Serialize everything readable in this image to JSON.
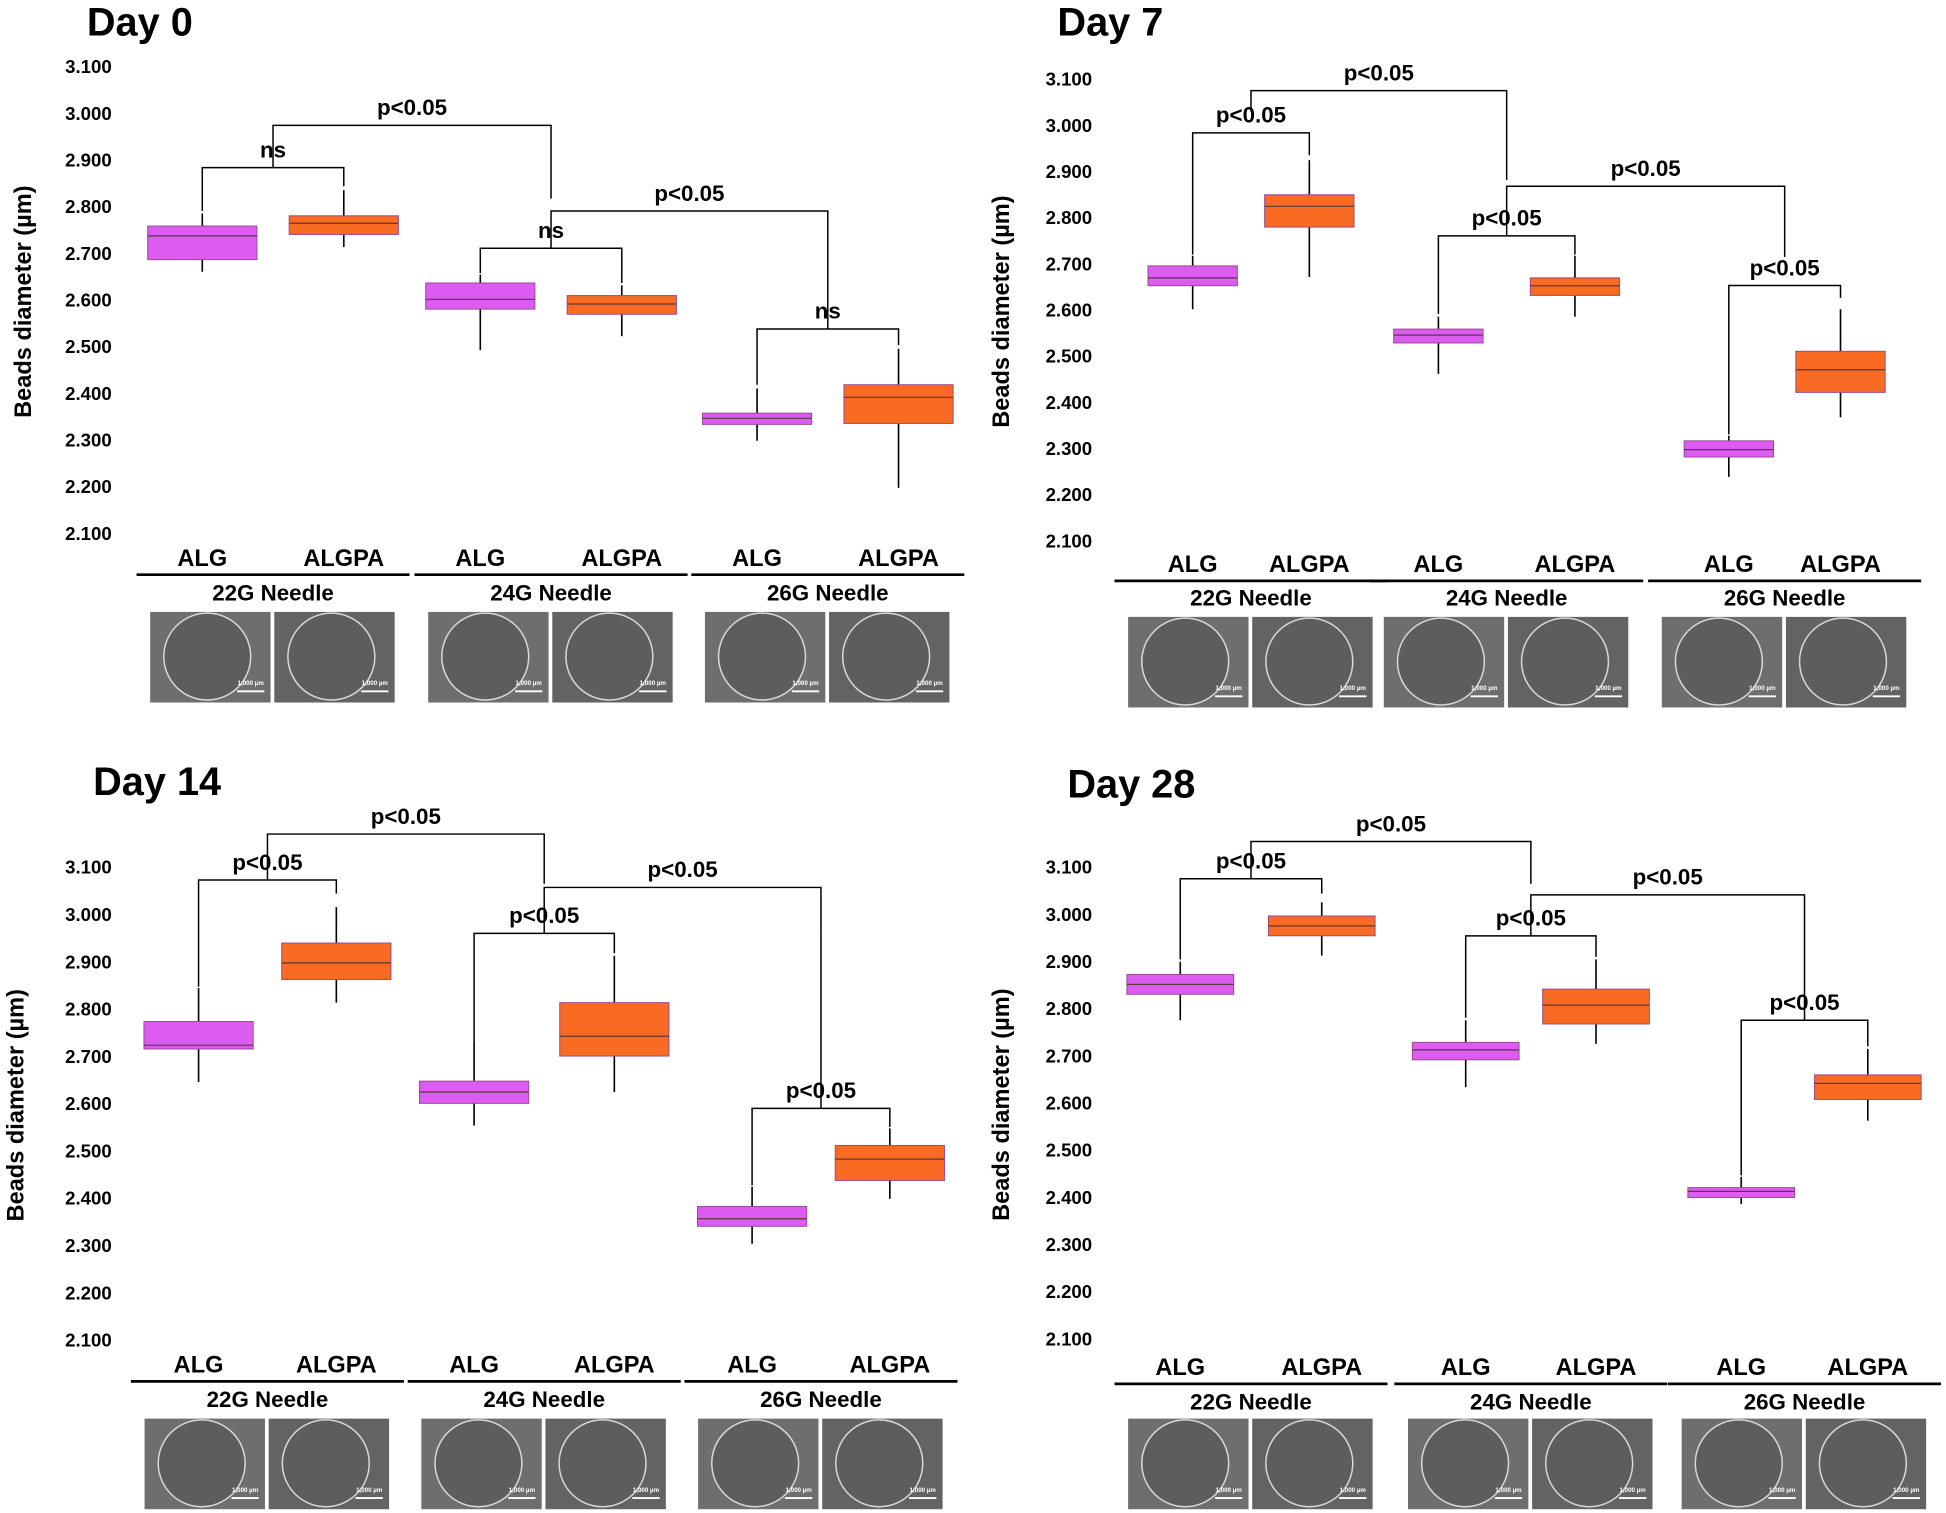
{
  "chart_data": [
    {
      "type": "box",
      "title": "Day 0",
      "ylabel": "Beads diameter (µm)",
      "ylim": [
        2.1,
        3.1
      ],
      "yticks": [
        {
          "value": 2.1,
          "label": "2.100"
        },
        {
          "value": 2.2,
          "label": "2.200"
        },
        {
          "value": 2.3,
          "label": "2.300"
        },
        {
          "value": 2.4,
          "label": "2.400"
        },
        {
          "value": 2.5,
          "label": "2.500"
        },
        {
          "value": 2.6,
          "label": "2.600"
        },
        {
          "value": 2.7,
          "label": "2.700"
        },
        {
          "value": 2.8,
          "label": "2.800"
        },
        {
          "value": 2.9,
          "label": "2.900"
        },
        {
          "value": 3.0,
          "label": "3.000"
        },
        {
          "value": 3.1,
          "label": "3.100"
        }
      ],
      "categories": [
        "ALG",
        "ALGPA",
        "ALG",
        "ALGPA",
        "ALG",
        "ALGPA"
      ],
      "groups": [
        "22G Needle",
        "24G Needle",
        "26G Needle"
      ],
      "boxes": [
        {
          "min": 2.664,
          "q1": 2.69,
          "median": 2.741,
          "q3": 2.762,
          "max": 2.789,
          "color": "#dc5cf2"
        },
        {
          "min": 2.717,
          "q1": 2.744,
          "median": 2.768,
          "q3": 2.784,
          "max": 2.839,
          "color": "#f96a22"
        },
        {
          "min": 2.496,
          "q1": 2.584,
          "median": 2.605,
          "q3": 2.64,
          "max": 2.658,
          "color": "#dc5cf2"
        },
        {
          "min": 2.526,
          "q1": 2.573,
          "median": 2.595,
          "q3": 2.613,
          "max": 2.635,
          "color": "#f96a22"
        },
        {
          "min": 2.302,
          "q1": 2.337,
          "median": 2.35,
          "q3": 2.361,
          "max": 2.414,
          "color": "#dc5cf2"
        },
        {
          "min": 2.201,
          "q1": 2.339,
          "median": 2.395,
          "q3": 2.422,
          "max": 2.499,
          "color": "#f96a22"
        }
      ],
      "annotations": [
        "ns",
        "p<0.05",
        "p<0.05",
        "ns",
        "ns"
      ],
      "scale_label": "1,000 µm"
    },
    {
      "type": "box",
      "title": "Day 7",
      "ylabel": "Beads diameter (µm)",
      "ylim": [
        2.1,
        3.1
      ],
      "yticks": [
        {
          "value": 2.1,
          "label": "2.100"
        },
        {
          "value": 2.2,
          "label": "2.200"
        },
        {
          "value": 2.3,
          "label": "2.300"
        },
        {
          "value": 2.4,
          "label": "2.400"
        },
        {
          "value": 2.5,
          "label": "2.500"
        },
        {
          "value": 2.6,
          "label": "2.600"
        },
        {
          "value": 2.7,
          "label": "2.700"
        },
        {
          "value": 2.8,
          "label": "2.800"
        },
        {
          "value": 2.9,
          "label": "2.900"
        },
        {
          "value": 3.0,
          "label": "3.000"
        },
        {
          "value": 3.1,
          "label": "3.100"
        }
      ],
      "categories": [
        "ALG",
        "ALGPA",
        "ALG",
        "ALGPA",
        "ALG",
        "ALGPA"
      ],
      "groups": [
        "22G Needle",
        "24G Needle",
        "26G Needle"
      ],
      "boxes": [
        {
          "min": 2.605,
          "q1": 2.656,
          "median": 2.673,
          "q3": 2.699,
          "max": 2.721,
          "color": "#dc5cf2"
        },
        {
          "min": 2.675,
          "q1": 2.783,
          "median": 2.828,
          "q3": 2.853,
          "max": 2.928,
          "color": "#f96a22"
        },
        {
          "min": 2.465,
          "q1": 2.532,
          "median": 2.549,
          "q3": 2.562,
          "max": 2.589,
          "color": "#dc5cf2"
        },
        {
          "min": 2.589,
          "q1": 2.635,
          "median": 2.656,
          "q3": 2.673,
          "max": 2.721,
          "color": "#f96a22"
        },
        {
          "min": 2.242,
          "q1": 2.285,
          "median": 2.301,
          "q3": 2.32,
          "max": 2.331,
          "color": "#dc5cf2"
        },
        {
          "min": 2.371,
          "q1": 2.425,
          "median": 2.474,
          "q3": 2.514,
          "max": 2.605,
          "color": "#f96a22"
        }
      ],
      "annotations": [
        "p<0.05",
        "p<0.05",
        "p<0.05",
        "p<0.05",
        "p<0.05"
      ],
      "scale_label": "1,000 µm"
    },
    {
      "type": "box",
      "title": "Day 14",
      "ylabel": "Beads diameter (µm)",
      "ylim": [
        2.1,
        3.1
      ],
      "yticks": [
        {
          "value": 2.1,
          "label": "2.100"
        },
        {
          "value": 2.2,
          "label": "2.200"
        },
        {
          "value": 2.3,
          "label": "2.300"
        },
        {
          "value": 2.4,
          "label": "2.400"
        },
        {
          "value": 2.5,
          "label": "2.500"
        },
        {
          "value": 2.6,
          "label": "2.600"
        },
        {
          "value": 2.7,
          "label": "2.700"
        },
        {
          "value": 2.8,
          "label": "2.800"
        },
        {
          "value": 2.9,
          "label": "2.900"
        },
        {
          "value": 3.0,
          "label": "3.000"
        },
        {
          "value": 3.1,
          "label": "3.100"
        }
      ],
      "categories": [
        "ALG",
        "ALGPA",
        "ALG",
        "ALGPA",
        "ALG",
        "ALGPA"
      ],
      "groups": [
        "22G Needle",
        "24G Needle",
        "26G Needle"
      ],
      "boxes": [
        {
          "min": 2.649,
          "q1": 2.719,
          "median": 2.727,
          "q3": 2.777,
          "max": 2.848,
          "color": "#dc5cf2"
        },
        {
          "min": 2.817,
          "q1": 2.866,
          "median": 2.901,
          "q3": 2.943,
          "max": 3.019,
          "color": "#f96a22"
        },
        {
          "min": 2.557,
          "q1": 2.604,
          "median": 2.628,
          "q3": 2.651,
          "max": 2.733,
          "color": "#dc5cf2"
        },
        {
          "min": 2.628,
          "q1": 2.704,
          "median": 2.746,
          "q3": 2.817,
          "max": 2.916,
          "color": "#f96a22"
        },
        {
          "min": 2.307,
          "q1": 2.344,
          "median": 2.36,
          "q3": 2.386,
          "max": 2.428,
          "color": "#dc5cf2"
        },
        {
          "min": 2.402,
          "q1": 2.441,
          "median": 2.486,
          "q3": 2.515,
          "max": 2.551,
          "color": "#f96a22"
        }
      ],
      "annotations": [
        "p<0.05",
        "p<0.05",
        "p<0.05",
        "p<0.05",
        "p<0.05"
      ],
      "scale_label": "1,000 µm"
    },
    {
      "type": "box",
      "title": "Day 28",
      "ylabel": "Beads diameter (µm)",
      "ylim": [
        2.1,
        3.1
      ],
      "yticks": [
        {
          "value": 2.1,
          "label": "2.100"
        },
        {
          "value": 2.2,
          "label": "2.200"
        },
        {
          "value": 2.3,
          "label": "2.300"
        },
        {
          "value": 2.4,
          "label": "2.400"
        },
        {
          "value": 2.5,
          "label": "2.500"
        },
        {
          "value": 2.6,
          "label": "2.600"
        },
        {
          "value": 2.7,
          "label": "2.700"
        },
        {
          "value": 2.8,
          "label": "2.800"
        },
        {
          "value": 2.9,
          "label": "2.900"
        },
        {
          "value": 3.0,
          "label": "3.000"
        },
        {
          "value": 3.1,
          "label": "3.100"
        }
      ],
      "categories": [
        "ALG",
        "ALGPA",
        "ALG",
        "ALGPA",
        "ALG",
        "ALGPA"
      ],
      "groups": [
        "22G Needle",
        "24G Needle",
        "26G Needle"
      ],
      "boxes": [
        {
          "min": 2.779,
          "q1": 2.834,
          "median": 2.855,
          "q3": 2.876,
          "max": 2.903,
          "color": "#dc5cf2"
        },
        {
          "min": 2.916,
          "q1": 2.958,
          "median": 2.979,
          "q3": 3.0,
          "max": 3.029,
          "color": "#f96a22"
        },
        {
          "min": 2.637,
          "q1": 2.695,
          "median": 2.716,
          "q3": 2.732,
          "max": 2.779,
          "color": "#dc5cf2"
        },
        {
          "min": 2.729,
          "q1": 2.771,
          "median": 2.811,
          "q3": 2.845,
          "max": 2.908,
          "color": "#f96a22"
        },
        {
          "min": 2.389,
          "q1": 2.403,
          "median": 2.416,
          "q3": 2.424,
          "max": 2.447,
          "color": "#dc5cf2"
        },
        {
          "min": 2.566,
          "q1": 2.611,
          "median": 2.645,
          "q3": 2.663,
          "max": 2.718,
          "color": "#f96a22"
        }
      ],
      "annotations": [
        "p<0.05",
        "p<0.05",
        "p<0.05",
        "p<0.05",
        "p<0.05"
      ],
      "scale_label": "1,000 µm"
    }
  ]
}
